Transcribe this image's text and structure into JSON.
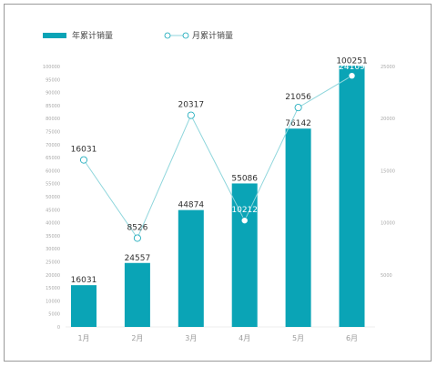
{
  "chart_data": {
    "type": "bar",
    "categories": [
      "1月",
      "2月",
      "3月",
      "4月",
      "5月",
      "6月"
    ],
    "series": [
      {
        "name": "年累计销量",
        "type": "bar",
        "axis": "left",
        "values": [
          16031,
          24557,
          44874,
          55086,
          76142,
          100251
        ]
      },
      {
        "name": "月累计销量",
        "type": "line",
        "axis": "right",
        "values": [
          16031,
          8526,
          20317,
          10212,
          21056,
          24109
        ]
      }
    ],
    "y_left": {
      "min": 0,
      "max": 100000,
      "step": 5000
    },
    "y_right": {
      "min": 0,
      "max": 25000,
      "step": 5000,
      "tick_labels": [
        "5000",
        "10000",
        "15000",
        "20000",
        "25000"
      ]
    },
    "colors": {
      "bar": "#0aa4b6",
      "line": "#8fd6dc",
      "marker_stroke": "#0aa4b6"
    },
    "legend": "top-left",
    "grid": false
  }
}
